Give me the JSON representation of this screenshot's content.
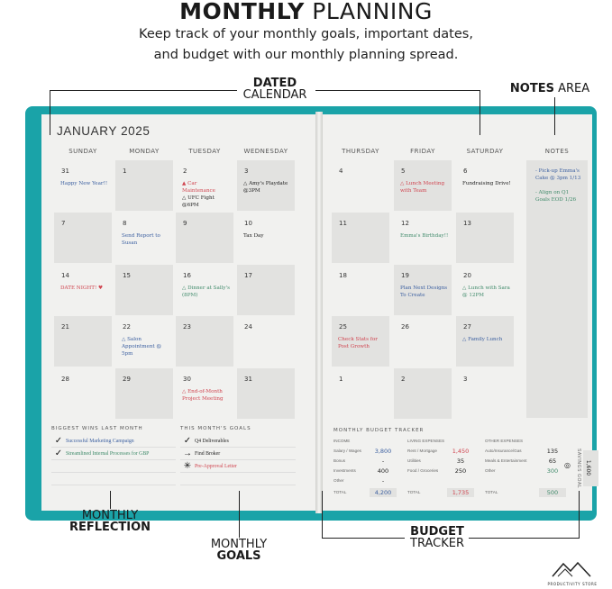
{
  "header": {
    "title_bold": "MONTHLY",
    "title_rest": " PLANNING",
    "subtitle_1": "Keep track of your monthly goals, important dates,",
    "subtitle_2": "and budget with our monthly planning spread."
  },
  "callouts": {
    "calendar_1": "DATED",
    "calendar_2": "CALENDAR",
    "notes_bold": "NOTES",
    "notes_rest": " AREA",
    "reflection_1": "MONTHLY",
    "reflection_2": "REFLECTION",
    "goals_1": "MONTHLY",
    "goals_2": "GOALS",
    "budget_1": "BUDGET",
    "budget_2": "TRACKER"
  },
  "logo": "PRODUCTIVITY STORE",
  "colors": {
    "cover": "#1aa3a8",
    "blue": "#3b5fa0",
    "red": "#d0444f",
    "green": "#3f8a6a",
    "black": "#222222"
  },
  "calendar": {
    "month": "JANUARY 2025",
    "days": [
      "SUNDAY",
      "MONDAY",
      "TUESDAY",
      "WEDNESDAY",
      "THURSDAY",
      "FRIDAY",
      "SATURDAY"
    ],
    "notes_label": "NOTES",
    "weeks": [
      [
        {
          "n": "31",
          "ev": [
            {
              "t": "Happy New Year!!",
              "c": "blue"
            }
          ]
        },
        {
          "n": "1"
        },
        {
          "n": "2",
          "ev": [
            {
              "t": "▲ Car Maintenance",
              "c": "red"
            },
            {
              "t": "△ UFC Fight @6PM",
              "c": "black"
            }
          ]
        },
        {
          "n": "3",
          "ev": [
            {
              "t": "△ Amy's Playdate @3PM",
              "c": "black"
            }
          ]
        },
        {
          "n": "4"
        },
        {
          "n": "5",
          "ev": [
            {
              "t": "△ Lunch Meeting with Team",
              "c": "red"
            }
          ]
        },
        {
          "n": "6",
          "ev": [
            {
              "t": "Fundraising Drive!",
              "c": "black"
            }
          ]
        }
      ],
      [
        {
          "n": "7"
        },
        {
          "n": "8",
          "ev": [
            {
              "t": "Send Report to Susan",
              "c": "blue"
            }
          ]
        },
        {
          "n": "9"
        },
        {
          "n": "10",
          "ev": [
            {
              "t": "Tax Day",
              "c": "black"
            }
          ]
        },
        {
          "n": "11"
        },
        {
          "n": "12",
          "ev": [
            {
              "t": "Emma's Birthday!!",
              "c": "green"
            }
          ]
        },
        {
          "n": "13"
        }
      ],
      [
        {
          "n": "14",
          "ev": [
            {
              "t": "DATE NIGHT! ♥",
              "c": "red"
            }
          ]
        },
        {
          "n": "15"
        },
        {
          "n": "16",
          "ev": [
            {
              "t": "△ Dinner at Sally's (8PM)",
              "c": "green"
            }
          ]
        },
        {
          "n": "17"
        },
        {
          "n": "18"
        },
        {
          "n": "19",
          "ev": [
            {
              "t": "Plan Next Designs To Create",
              "c": "blue"
            }
          ]
        },
        {
          "n": "20",
          "ev": [
            {
              "t": "△ Lunch with Sara @ 12PM",
              "c": "green"
            }
          ]
        }
      ],
      [
        {
          "n": "21"
        },
        {
          "n": "22",
          "ev": [
            {
              "t": "△ Salon Appointment @ 5pm",
              "c": "blue"
            }
          ]
        },
        {
          "n": "23"
        },
        {
          "n": "24"
        },
        {
          "n": "25",
          "ev": [
            {
              "t": "Check Stats for Post Growth",
              "c": "red"
            }
          ]
        },
        {
          "n": "26"
        },
        {
          "n": "27",
          "ev": [
            {
              "t": "△ Family Lunch",
              "c": "blue"
            }
          ]
        }
      ],
      [
        {
          "n": "28"
        },
        {
          "n": "29"
        },
        {
          "n": "30",
          "ev": [
            {
              "t": "△ End-of-Month Project Meeting",
              "c": "red"
            }
          ]
        },
        {
          "n": "31"
        },
        {
          "n": "1"
        },
        {
          "n": "2"
        },
        {
          "n": "3"
        }
      ]
    ],
    "notes": [
      {
        "t": "- Pick-up Emma's Cake @ 3pm 1/13",
        "c": "blue"
      },
      {
        "t": "- Align on Q1 Goals EOD 1/26",
        "c": "green"
      }
    ]
  },
  "wins": {
    "title": "BIGGEST WINS LAST MONTH",
    "items": [
      {
        "icon": "check-icon",
        "glyph": "✓",
        "t": "Successful Marketing Campaign",
        "c": "blue"
      },
      {
        "icon": "check-icon",
        "glyph": "✓",
        "t": "Streamlined Internal Processes for GBP",
        "c": "green"
      }
    ]
  },
  "goals": {
    "title": "THIS MONTH'S GOALS",
    "items": [
      {
        "icon": "check-icon",
        "glyph": "✓",
        "t": "Q4 Deliverables",
        "c": "black"
      },
      {
        "icon": "arrow-right-icon",
        "glyph": "→",
        "t": "Find Broker",
        "c": "black"
      },
      {
        "icon": "star-burst-icon",
        "glyph": "✳",
        "t": "Pre-Approval Letter",
        "c": "red"
      }
    ]
  },
  "budget": {
    "title": "MONTHLY BUDGET TRACKER",
    "income": {
      "header": "INCOME",
      "rows": [
        [
          "Salary / Wages",
          "3,800"
        ],
        [
          "Bonus",
          "-"
        ],
        [
          "Investments",
          "400"
        ],
        [
          "Other",
          "-"
        ]
      ],
      "total_label": "TOTAL",
      "total": "4,200"
    },
    "living": {
      "header": "LIVING EXPENSES",
      "rows": [
        [
          "Rent / Mortgage",
          "1,450"
        ],
        [
          "Utilities",
          "35"
        ],
        [
          "Food / Groceries",
          "250"
        ]
      ],
      "total_label": "TOTAL",
      "total": "1,735"
    },
    "other": {
      "header": "OTHER EXPENSES",
      "rows": [
        [
          "Auto/Insurance/Gas",
          "135"
        ],
        [
          "Meals & Entertainment",
          "65"
        ],
        [
          "Other",
          "300"
        ]
      ],
      "total_label": "TOTAL",
      "total": "500"
    },
    "savings_label": "SAVINGS GOAL",
    "savings": "1,600"
  }
}
